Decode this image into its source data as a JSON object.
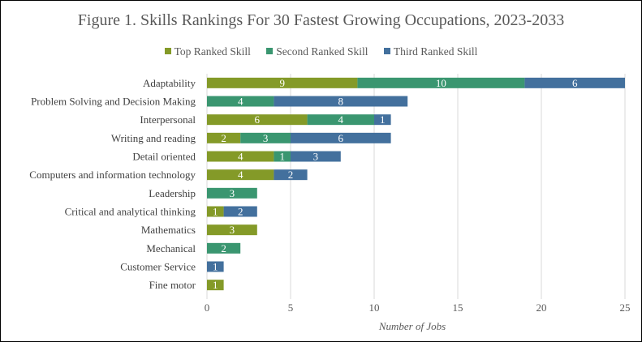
{
  "chart_data": {
    "type": "bar",
    "orientation": "horizontal",
    "stacked": true,
    "title": "Figure 1. Skills Rankings For 30 Fastest Growing Occupations, 2023-2033",
    "xlabel": "Number of Jobs",
    "ylabel": "",
    "xlim": [
      0,
      25
    ],
    "xticks": [
      0,
      5,
      10,
      15,
      20,
      25
    ],
    "grid": true,
    "legend_position": "top",
    "categories": [
      "Adaptability",
      "Problem Solving and Decision Making",
      "Interpersonal",
      "Writing and reading",
      "Detail oriented",
      "Computers and information technology",
      "Leadership",
      "Critical and analytical thinking",
      "Mathematics",
      "Mechanical",
      "Customer Service",
      "Fine motor"
    ],
    "series": [
      {
        "name": "Top Ranked Skill",
        "color": "#849A28",
        "values": [
          9,
          0,
          6,
          2,
          4,
          4,
          0,
          1,
          3,
          0,
          0,
          1
        ]
      },
      {
        "name": "Second Ranked Skill",
        "color": "#3A9670",
        "values": [
          10,
          4,
          4,
          3,
          1,
          0,
          3,
          0,
          0,
          2,
          0,
          0
        ]
      },
      {
        "name": "Third Ranked Skill",
        "color": "#43709D",
        "values": [
          6,
          8,
          1,
          6,
          3,
          2,
          0,
          2,
          0,
          0,
          1,
          0
        ]
      }
    ]
  }
}
